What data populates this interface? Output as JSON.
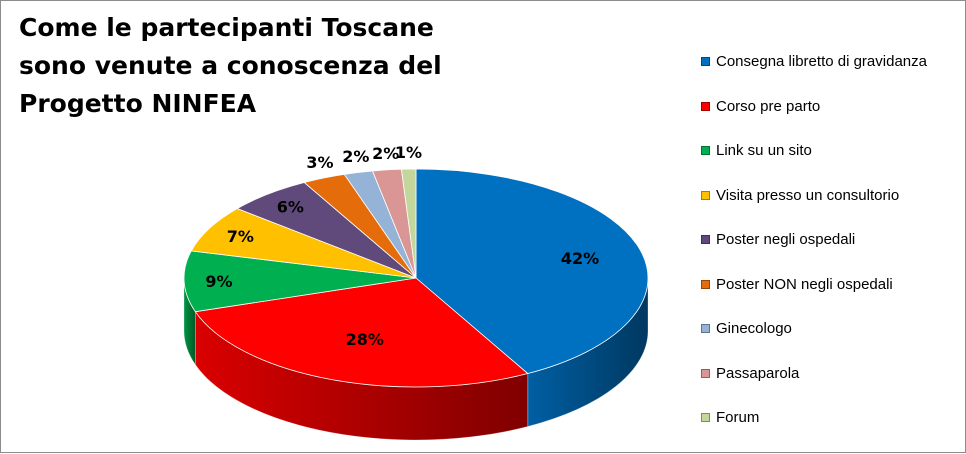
{
  "chart_data": {
    "type": "pie",
    "title": "Come le partecipanti Toscane sono venute a conoscenza del Progetto NINFEA",
    "legend_position": "right",
    "slices": [
      {
        "label": "Consegna libretto di gravidanza",
        "value": 42,
        "value_label": "42%",
        "color": "#0070C0"
      },
      {
        "label": "Corso pre parto",
        "value": 28,
        "value_label": "28%",
        "color": "#FF0000"
      },
      {
        "label": "Link su un sito",
        "value": 9,
        "value_label": "9%",
        "color": "#00B050"
      },
      {
        "label": "Visita presso un consultorio",
        "value": 7,
        "value_label": "7%",
        "color": "#FFC000"
      },
      {
        "label": "Poster negli ospedali",
        "value": 6,
        "value_label": "6%",
        "color": "#604A7B"
      },
      {
        "label": "Poster NON negli ospedali",
        "value": 3,
        "value_label": "3%",
        "color": "#E46C0A"
      },
      {
        "label": "Ginecologo",
        "value": 2,
        "value_label": "2%",
        "color": "#95B3D7"
      },
      {
        "label": "Passaparola",
        "value": 2,
        "value_label": "2%",
        "color": "#D99694"
      },
      {
        "label": "Forum",
        "value": 1,
        "value_label": "1%",
        "color": "#C3D69B"
      }
    ]
  }
}
